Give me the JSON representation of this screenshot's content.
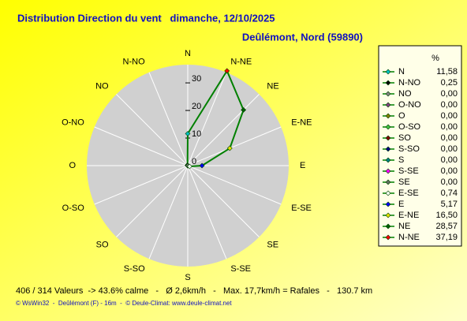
{
  "chart_data": {
    "type": "radar",
    "title": "Distribution Direction du vent   dimanche, 12/10/2025",
    "subtitle": "Deûlémont, Nord (59890)",
    "legend_header": "%",
    "footer": "406 / 314 Valeurs  -> 43.6% calme   -   Ø 2,6km/h   -   Max. 17,7km/h = Rafales   -   130.7 km",
    "credits": "© WsWin32  -  Deûlémont (F) - 16m  -  © Deule-Climat: www.deule-climat.net",
    "categories": [
      "N",
      "N-NO",
      "NO",
      "O-NO",
      "O",
      "O-SO",
      "SO",
      "S-SO",
      "S",
      "S-SE",
      "SE",
      "E-SE",
      "E",
      "E-NE",
      "NE",
      "N-NE"
    ],
    "series": [
      {
        "color": "#008000",
        "values": [
          11.58,
          0.25,
          0,
          0,
          0,
          0,
          0,
          0,
          0,
          0,
          0,
          0.74,
          5.17,
          16.5,
          28.57,
          37.19
        ],
        "value_labels": [
          "11,58",
          "0,25",
          "0,00",
          "0,00",
          "0,00",
          "0,00",
          "0,00",
          "0,00",
          "0,00",
          "0,00",
          "0,00",
          "0,74",
          "5,17",
          "16,50",
          "28,57",
          "37,19"
        ],
        "marker_colors": [
          "#00c0c0",
          "#000000",
          "#808080",
          "#804080",
          "#808000",
          "#40c040",
          "#800000",
          "#000080",
          "#008080",
          "#ff00ff",
          "#607060",
          "#f0fff0",
          "#0000ff",
          "#e0e000",
          "#006000",
          "#ff0000"
        ]
      }
    ],
    "rlim": [
      0,
      36.6
    ],
    "rticks": [
      0,
      10,
      20,
      30
    ],
    "grid": true
  }
}
